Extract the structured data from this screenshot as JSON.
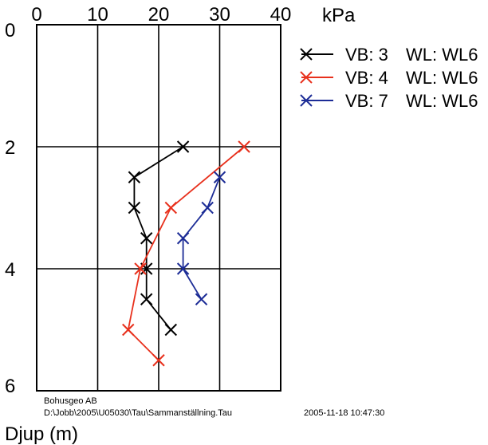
{
  "chart_data": {
    "type": "line",
    "xlabel": "kPa",
    "ylabel": "Djup (m)",
    "xlim": [
      0,
      40
    ],
    "ylim": [
      0,
      6
    ],
    "y_inverted": true,
    "x_axis_position": "top",
    "grid": true,
    "xticks": [
      0,
      10,
      20,
      30,
      40
    ],
    "yticks": [
      0,
      2,
      4,
      6
    ],
    "legend_position": "top-right",
    "series": [
      {
        "name": "VB: 3   WL: WL6",
        "label_vb": "VB: 3",
        "label_wl": "WL: WL6",
        "color": "#000000",
        "points": [
          [
            24,
            2.0
          ],
          [
            16,
            2.5
          ],
          [
            16,
            3.0
          ],
          [
            18,
            3.5
          ],
          [
            18,
            4.0
          ],
          [
            18,
            4.5
          ],
          [
            22,
            5.0
          ]
        ]
      },
      {
        "name": "VB: 4   WL: WL6",
        "label_vb": "VB: 4",
        "label_wl": "WL: WL6",
        "color": "#e8301c",
        "points": [
          [
            34,
            2.0
          ],
          [
            22,
            3.0
          ],
          [
            17,
            4.0
          ],
          [
            15,
            5.0
          ],
          [
            20,
            5.5
          ]
        ]
      },
      {
        "name": "VB: 7   WL: WL6",
        "label_vb": "VB: 7",
        "label_wl": "WL: WL6",
        "color": "#1c2c96",
        "points": [
          [
            30,
            2.5
          ],
          [
            28,
            3.0
          ],
          [
            24,
            3.5
          ],
          [
            24,
            4.0
          ],
          [
            27,
            4.5
          ]
        ]
      }
    ]
  },
  "footer": {
    "company": "Bohusgeo AB",
    "path": "D:\\Jobb\\2005\\U05030\\Tau\\Sammanställning.Tau",
    "timestamp": "2005-11-18 10:47:30"
  }
}
